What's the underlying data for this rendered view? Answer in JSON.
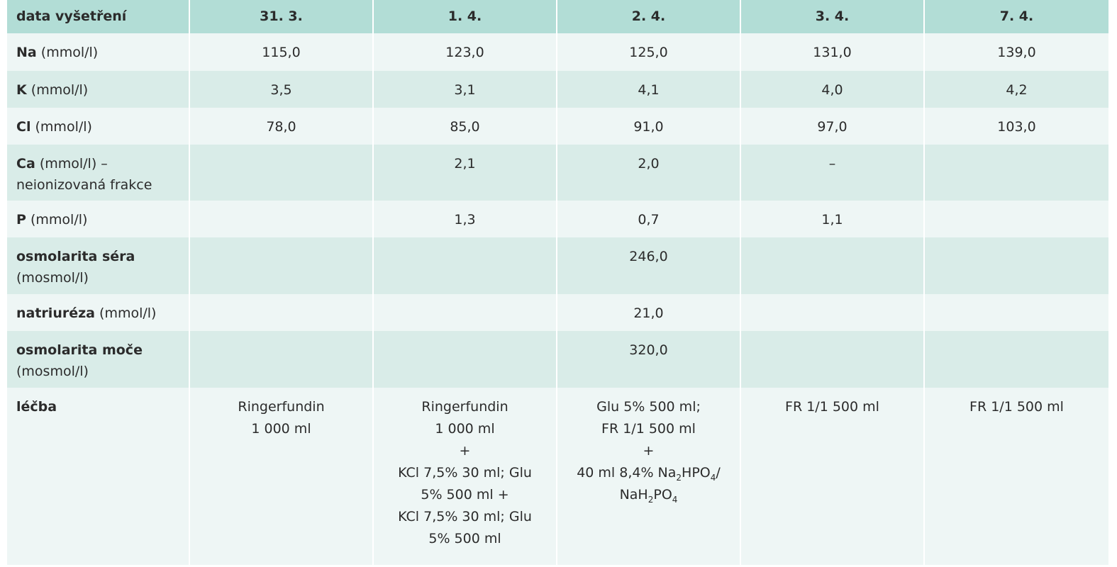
{
  "table": {
    "header": [
      "data vyšetření",
      "31. 3.",
      "1. 4.",
      "2. 4.",
      "3. 4.",
      "7. 4."
    ],
    "rows": [
      {
        "label": {
          "bold": "Na",
          "text": "(mmol/l)"
        },
        "values": [
          "115,0",
          "123,0",
          "125,0",
          "131,0",
          "139,0"
        ]
      },
      {
        "label": {
          "bold": "K",
          "text": "(mmol/l)"
        },
        "values": [
          "3,5",
          "3,1",
          "4,1",
          "4,0",
          "4,2"
        ]
      },
      {
        "label": {
          "bold": "Cl",
          "text": "(mmol/l)"
        },
        "values": [
          "78,0",
          "85,0",
          "91,0",
          "97,0",
          "103,0"
        ]
      },
      {
        "label": {
          "bold": "Ca",
          "text": "(mmol/l) – neionizovaná frakce"
        },
        "values": [
          null,
          "2,1",
          "2,0",
          "–",
          null
        ]
      },
      {
        "label": {
          "bold": "P",
          "text": "(mmol/l)"
        },
        "values": [
          null,
          "1,3",
          "0,7",
          "1,1",
          null
        ]
      },
      {
        "label": {
          "bold": "osmolarita séra",
          "text": "(mosmol/l)"
        },
        "values": [
          null,
          null,
          "246,0",
          null,
          null
        ]
      },
      {
        "label": {
          "bold": "natriuréza",
          "text": "(mmol/l)"
        },
        "values": [
          null,
          null,
          "21,0",
          null,
          null
        ]
      },
      {
        "label": {
          "bold": "osmolarita moče",
          "text": "(mosmol/l)"
        },
        "values": [
          null,
          null,
          "320,0",
          null,
          null
        ]
      }
    ],
    "treatment": {
      "label": "léčba",
      "cells": [
        [
          [
            "Ringerfundin"
          ],
          [
            "1 000 ml"
          ]
        ],
        [
          [
            "Ringerfundin"
          ],
          [
            "1 000 ml"
          ],
          [
            "+"
          ],
          [
            "KCl 7,5% 30 ml; Glu 5% 500 ml +"
          ],
          [
            "KCl 7,5% 30 ml; Glu 5% 500 ml"
          ]
        ],
        [
          [
            "Glu 5% 500 ml;"
          ],
          [
            "FR 1/1 500 ml"
          ],
          [
            "+"
          ],
          [
            {
              "text": "40 ml 8,4% Na"
            },
            {
              "sub": "2"
            },
            {
              "text": "HPO"
            },
            {
              "sub": "4"
            },
            {
              "text": "/"
            }
          ],
          [
            {
              "text": "NaH"
            },
            {
              "sub": "2"
            },
            {
              "text": "PO"
            },
            {
              "sub": "4"
            }
          ]
        ],
        [
          [
            "FR 1/1 500 ml"
          ]
        ],
        [
          [
            "FR 1/1 500 ml"
          ]
        ]
      ]
    }
  }
}
